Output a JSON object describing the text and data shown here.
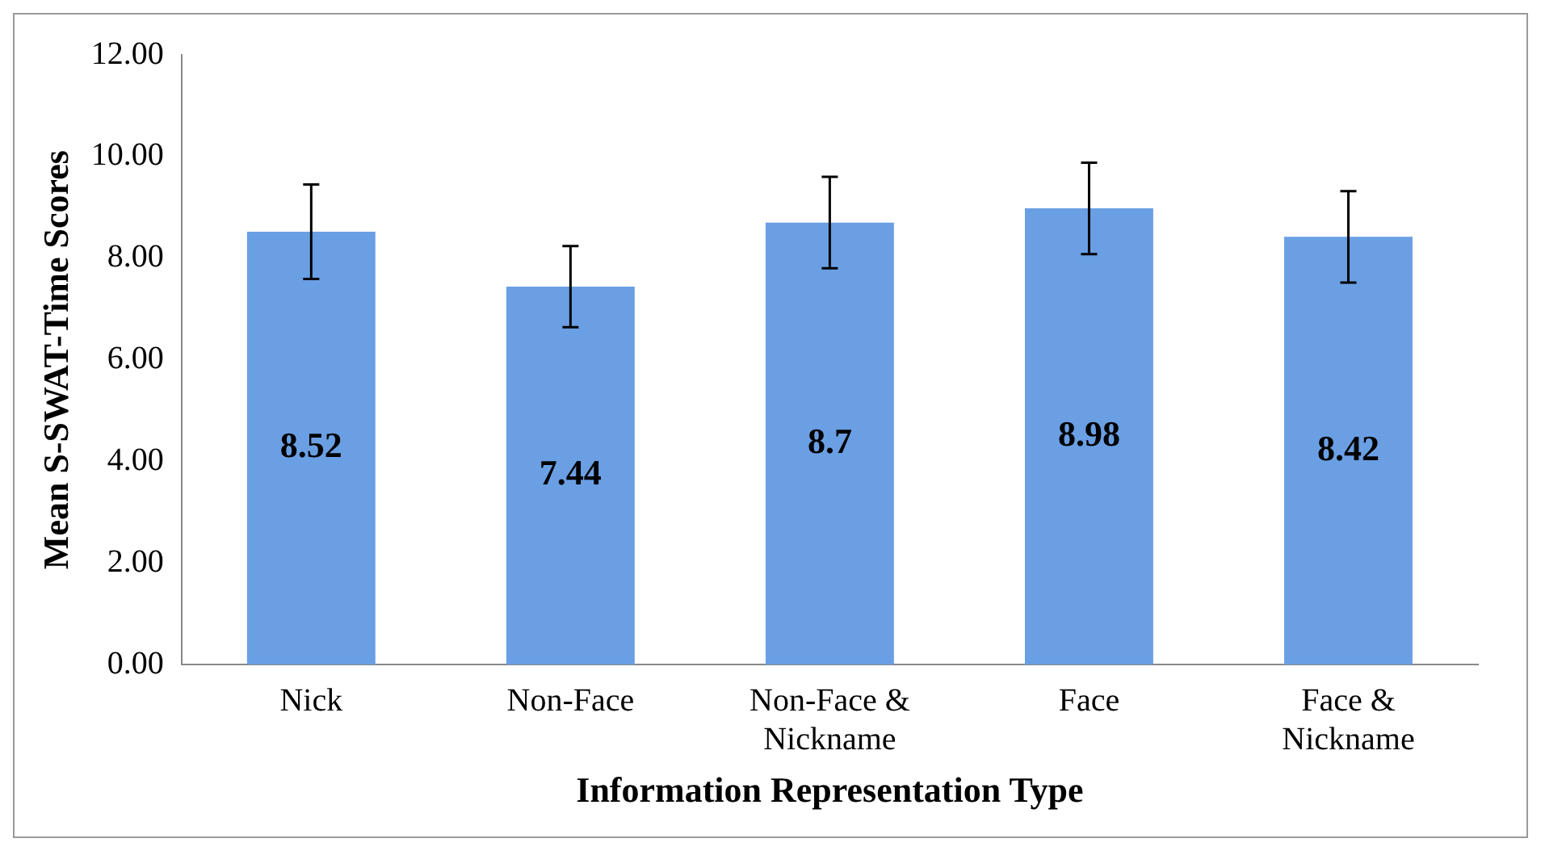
{
  "chart_data": {
    "type": "bar",
    "xlabel": "Information Representation Type",
    "ylabel": "Mean S-SWAT-Time Scores",
    "categories": [
      "Nick",
      "Non-Face",
      "Non-Face & Nickname",
      "Face",
      "Face & Nickname"
    ],
    "values": [
      8.52,
      7.44,
      8.7,
      8.98,
      8.42
    ],
    "errors": [
      0.93,
      0.8,
      0.9,
      0.9,
      0.9
    ],
    "color": "#6a9fe4",
    "ylim": [
      0,
      12
    ],
    "yticks": [
      {
        "value": 0,
        "label": "0.00"
      },
      {
        "value": 2,
        "label": "2.00"
      },
      {
        "value": 4,
        "label": "4.00"
      },
      {
        "value": 6,
        "label": "6.00"
      },
      {
        "value": 8,
        "label": "8.00"
      },
      {
        "value": 10,
        "label": "10.00"
      },
      {
        "value": 12,
        "label": "12.00"
      }
    ],
    "grid": false,
    "legend": false,
    "data_labels": true
  }
}
